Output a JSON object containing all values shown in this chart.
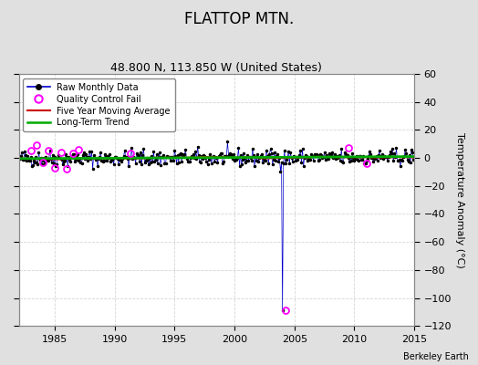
{
  "title": "FLATTOP MTN.",
  "subtitle": "48.800 N, 113.850 W (United States)",
  "ylabel": "Temperature Anomaly (°C)",
  "credit": "Berkeley Earth",
  "xlim": [
    1982,
    2015
  ],
  "ylim": [
    -120,
    60
  ],
  "yticks": [
    -120,
    -100,
    -80,
    -60,
    -40,
    -20,
    0,
    20,
    40,
    60
  ],
  "xticks": [
    1985,
    1990,
    1995,
    2000,
    2005,
    2010,
    2015
  ],
  "year_start": 1982.0,
  "year_end": 2014.917,
  "n_months": 396,
  "raw_seed": 42,
  "outlier_index": 264,
  "outlier_value": -109.0,
  "bg_color": "#e0e0e0",
  "plot_bg_color": "#ffffff",
  "line_color": "#0000cc",
  "marker_color": "#000000",
  "qc_color": "#ff00ff",
  "ma_color": "#cc0000",
  "trend_color": "#00aa00",
  "grid_color": "#cccccc",
  "title_fontsize": 12,
  "subtitle_fontsize": 9,
  "tick_fontsize": 8,
  "ylabel_fontsize": 8
}
